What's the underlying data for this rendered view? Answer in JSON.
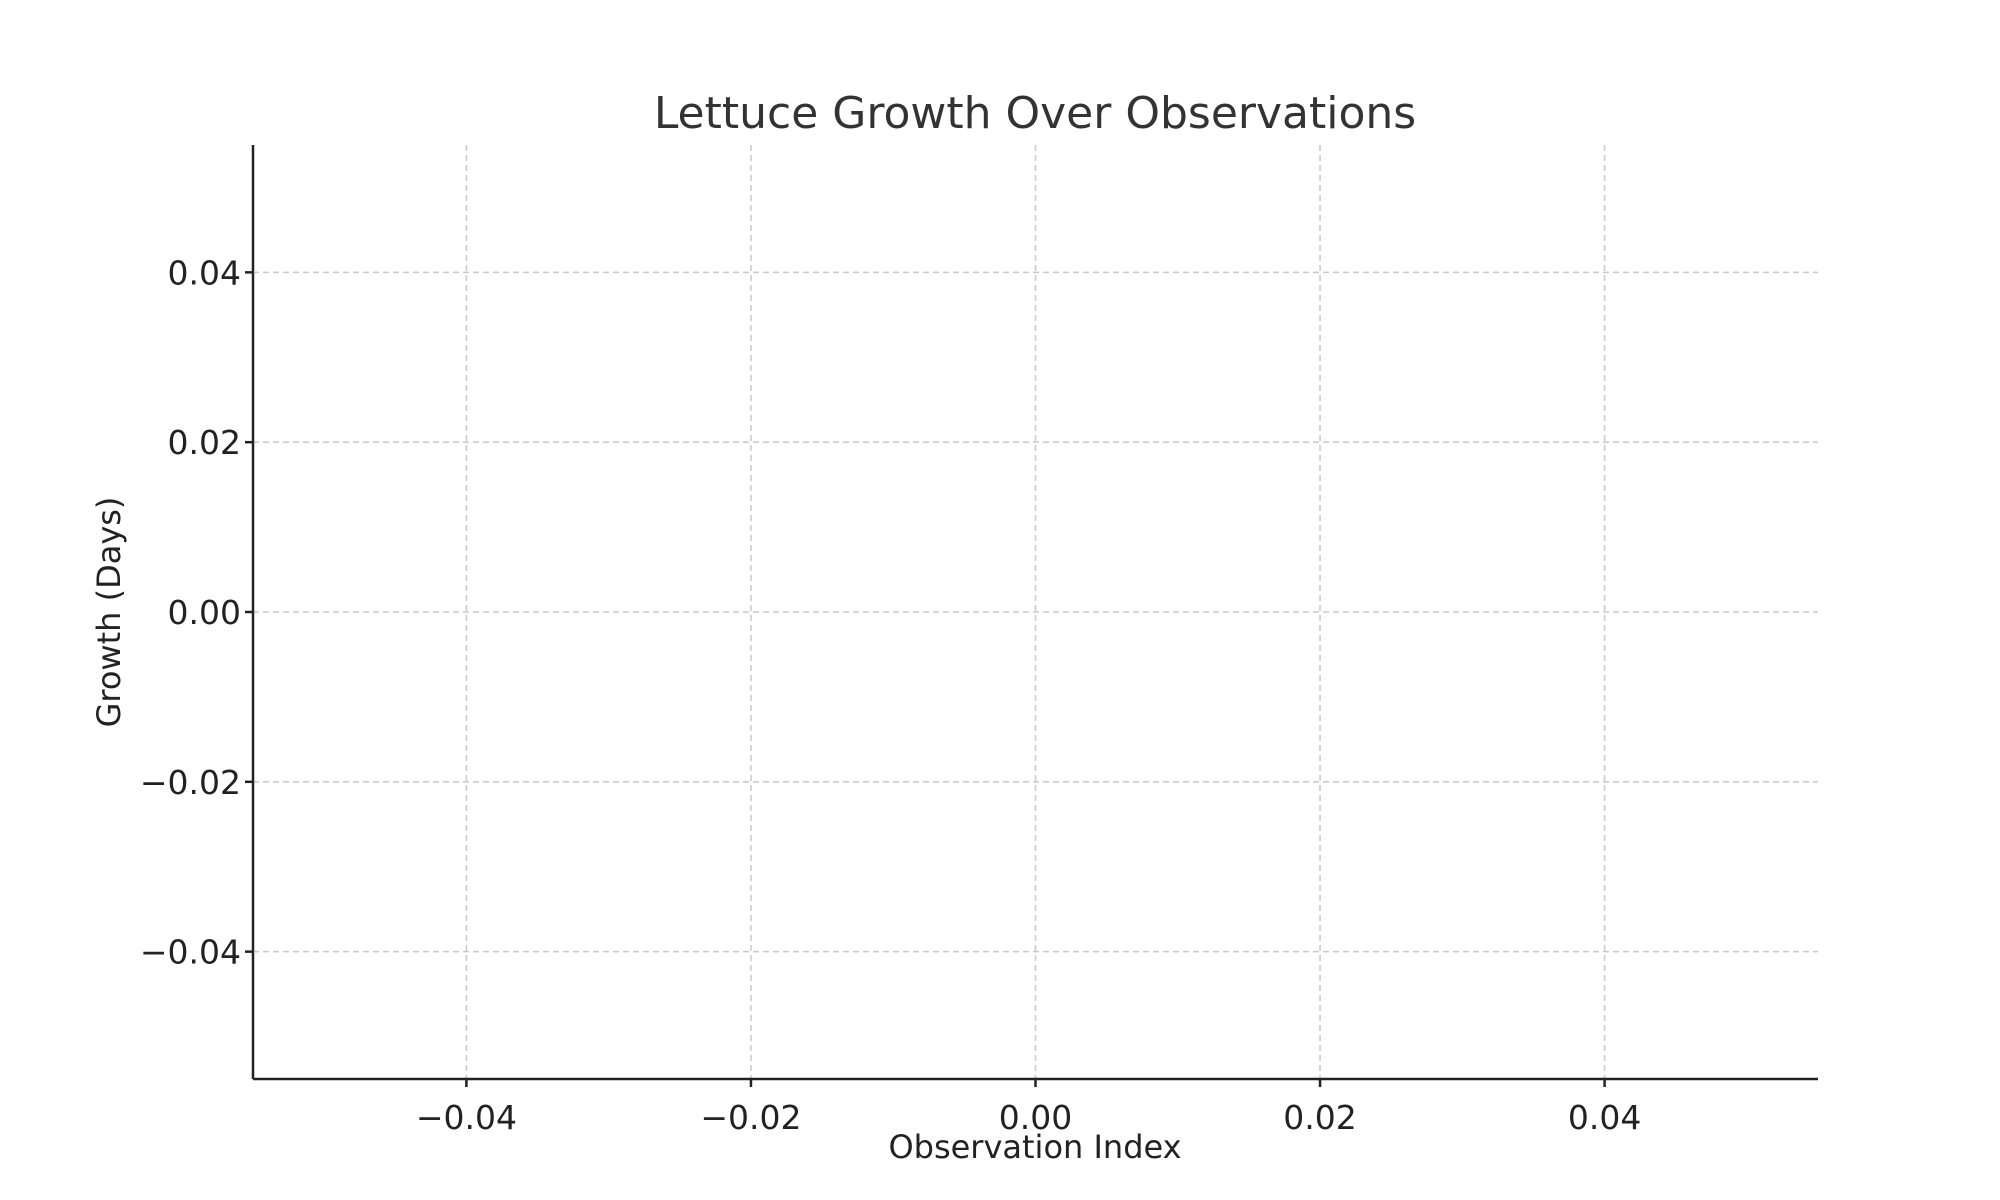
{
  "chart_data": {
    "type": "line",
    "title": "Lettuce Growth Over Observations",
    "xlabel": "Observation Index",
    "ylabel": "Growth (Days)",
    "xlim": [
      -0.055,
      0.055
    ],
    "ylim": [
      -0.055,
      0.055
    ],
    "x_ticks": [
      -0.04,
      -0.02,
      0.0,
      0.02,
      0.04
    ],
    "y_ticks": [
      -0.04,
      -0.02,
      0.0,
      0.02,
      0.04
    ],
    "x_tick_labels": [
      "−0.04",
      "−0.02",
      "0.00",
      "0.02",
      "0.04"
    ],
    "y_tick_labels": [
      "−0.04",
      "−0.02",
      "0.00",
      "0.02",
      "0.04"
    ],
    "grid": true,
    "series": [],
    "colors": {
      "grid": "#c8c8c8",
      "axis": "#222222",
      "title": "#333333"
    }
  }
}
